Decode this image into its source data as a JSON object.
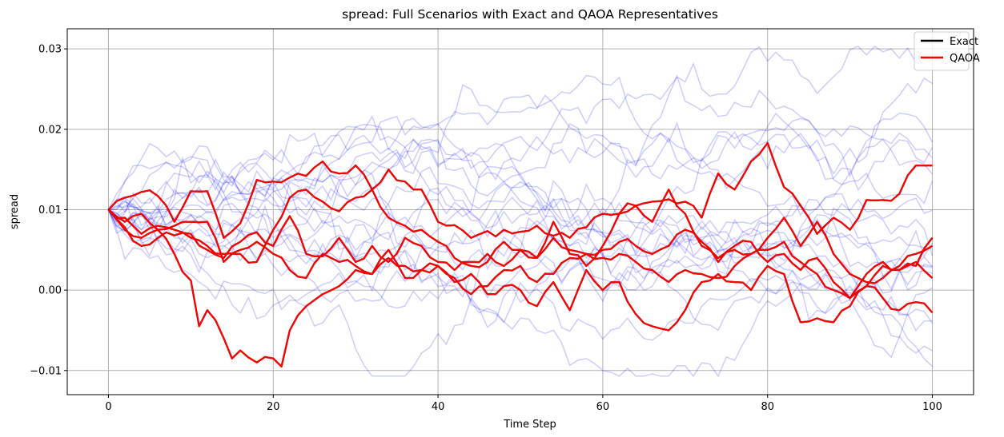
{
  "chart_data": {
    "type": "line",
    "title": "spread: Full Scenarios with Exact and QAOA Representatives",
    "xlabel": "Time Step",
    "ylabel": "spread",
    "xlim": [
      -5,
      105
    ],
    "ylim": [
      -0.013,
      0.0325
    ],
    "xticks": [
      0,
      20,
      40,
      60,
      80,
      100
    ],
    "xtick_labels": [
      "0",
      "20",
      "40",
      "60",
      "80",
      "100"
    ],
    "yticks": [
      -0.01,
      0.0,
      0.01,
      0.02,
      0.03
    ],
    "ytick_labels": [
      "−0.01",
      "0.00",
      "0.01",
      "0.02",
      "0.03"
    ],
    "grid": true,
    "legend_position": "upper right",
    "colors": {
      "scenario": "#0000ff",
      "exact": "#000000",
      "qaoa": "#ff0000"
    },
    "legend": [
      {
        "label": "Exact",
        "color": "#000000"
      },
      {
        "label": "QAOA",
        "color": "#ff0000"
      }
    ],
    "background_scenarios": {
      "count": 20,
      "n_points": 101,
      "start": 0.01,
      "note_alpha": 0.2,
      "y_min": -0.0107,
      "y_max": 0.0303
    },
    "representatives": [
      {
        "group": "QAOA",
        "waypoints": [
          [
            0,
            0.01
          ],
          [
            2,
            0.0115
          ],
          [
            4,
            0.0122
          ],
          [
            6,
            0.0117
          ],
          [
            8,
            0.0085
          ],
          [
            10,
            0.0123
          ],
          [
            12,
            0.0123
          ],
          [
            14,
            0.0065
          ],
          [
            16,
            0.0083
          ],
          [
            18,
            0.0137
          ],
          [
            20,
            0.0135
          ],
          [
            22,
            0.014
          ],
          [
            24,
            0.0142
          ],
          [
            26,
            0.016
          ],
          [
            28,
            0.0145
          ],
          [
            30,
            0.0155
          ],
          [
            32,
            0.0125
          ],
          [
            34,
            0.015
          ],
          [
            36,
            0.0135
          ],
          [
            38,
            0.0125
          ],
          [
            40,
            0.0085
          ],
          [
            44,
            0.0065
          ],
          [
            48,
            0.0075
          ],
          [
            52,
            0.008
          ],
          [
            56,
            0.0065
          ],
          [
            60,
            0.0095
          ],
          [
            64,
            0.0105
          ],
          [
            66,
            0.011
          ],
          [
            68,
            0.0113
          ],
          [
            70,
            0.011
          ],
          [
            72,
            0.009
          ],
          [
            74,
            0.0145
          ],
          [
            76,
            0.0125
          ],
          [
            78,
            0.016
          ],
          [
            80,
            0.0183
          ],
          [
            82,
            0.0128
          ],
          [
            84,
            0.0105
          ],
          [
            86,
            0.007
          ],
          [
            88,
            0.009
          ],
          [
            90,
            0.0075
          ],
          [
            92,
            0.0112
          ],
          [
            94,
            0.0112
          ],
          [
            96,
            0.012
          ],
          [
            98,
            0.0155
          ],
          [
            100,
            0.0155
          ]
        ]
      },
      {
        "group": "QAOA",
        "waypoints": [
          [
            0,
            0.01
          ],
          [
            2,
            0.0085
          ],
          [
            4,
            0.0095
          ],
          [
            6,
            0.0075
          ],
          [
            8,
            0.0045
          ],
          [
            10,
            0.0012
          ],
          [
            11,
            -0.0045
          ],
          [
            12,
            -0.0025
          ],
          [
            14,
            -0.006
          ],
          [
            15,
            -0.0085
          ],
          [
            16,
            -0.0075
          ],
          [
            18,
            -0.009
          ],
          [
            20,
            -0.0085
          ],
          [
            21,
            -0.0095
          ],
          [
            22,
            -0.005
          ],
          [
            24,
            -0.002
          ],
          [
            26,
            -0.0005
          ],
          [
            28,
            0.0005
          ],
          [
            30,
            0.0025
          ],
          [
            32,
            0.002
          ],
          [
            34,
            0.004
          ],
          [
            36,
            0.003
          ],
          [
            38,
            0.0025
          ],
          [
            40,
            0.003
          ],
          [
            42,
            0.001
          ],
          [
            44,
            0.002
          ],
          [
            46,
            -0.0005
          ],
          [
            48,
            0.0005
          ],
          [
            50,
            0.0
          ],
          [
            52,
            -0.002
          ],
          [
            54,
            0.001
          ],
          [
            56,
            -0.0025
          ],
          [
            58,
            0.0025
          ],
          [
            60,
            0.0
          ],
          [
            62,
            0.001
          ],
          [
            64,
            -0.003
          ],
          [
            66,
            -0.0045
          ],
          [
            68,
            -0.005
          ],
          [
            70,
            -0.0025
          ],
          [
            72,
            0.001
          ],
          [
            74,
            0.002
          ],
          [
            76,
            0.001
          ],
          [
            78,
            0.0
          ],
          [
            80,
            0.003
          ],
          [
            82,
            0.002
          ],
          [
            84,
            -0.004
          ],
          [
            86,
            -0.0035
          ],
          [
            88,
            -0.004
          ],
          [
            90,
            -0.002
          ],
          [
            92,
            0.0005
          ],
          [
            94,
            -0.001
          ],
          [
            96,
            -0.0025
          ],
          [
            98,
            -0.0015
          ],
          [
            100,
            -0.0028
          ]
        ]
      },
      {
        "group": "QAOA",
        "waypoints": [
          [
            0,
            0.01
          ],
          [
            2,
            0.0075
          ],
          [
            4,
            0.0065
          ],
          [
            6,
            0.0075
          ],
          [
            8,
            0.008
          ],
          [
            10,
            0.0085
          ],
          [
            12,
            0.0085
          ],
          [
            14,
            0.0035
          ],
          [
            16,
            0.0045
          ],
          [
            18,
            0.0035
          ],
          [
            20,
            0.0075
          ],
          [
            22,
            0.0115
          ],
          [
            24,
            0.0125
          ],
          [
            26,
            0.011
          ],
          [
            28,
            0.0098
          ],
          [
            30,
            0.0115
          ],
          [
            32,
            0.0125
          ],
          [
            34,
            0.009
          ],
          [
            36,
            0.008
          ],
          [
            38,
            0.0075
          ],
          [
            40,
            0.006
          ],
          [
            42,
            0.004
          ],
          [
            44,
            0.003
          ],
          [
            46,
            0.0035
          ],
          [
            48,
            0.006
          ],
          [
            50,
            0.005
          ],
          [
            52,
            0.004
          ],
          [
            54,
            0.0085
          ],
          [
            56,
            0.0045
          ],
          [
            58,
            0.003
          ],
          [
            60,
            0.0055
          ],
          [
            62,
            0.0095
          ],
          [
            64,
            0.0105
          ],
          [
            66,
            0.0085
          ],
          [
            68,
            0.0125
          ],
          [
            70,
            0.0095
          ],
          [
            72,
            0.0055
          ],
          [
            74,
            0.004
          ],
          [
            76,
            0.005
          ],
          [
            78,
            0.0045
          ],
          [
            80,
            0.0065
          ],
          [
            82,
            0.009
          ],
          [
            84,
            0.0055
          ],
          [
            86,
            0.0085
          ],
          [
            88,
            0.0045
          ],
          [
            90,
            0.002
          ],
          [
            92,
            0.001
          ],
          [
            94,
            0.0015
          ],
          [
            96,
            0.003
          ],
          [
            98,
            0.0045
          ],
          [
            100,
            0.0055
          ]
        ]
      },
      {
        "group": "QAOA",
        "waypoints": [
          [
            0,
            0.01
          ],
          [
            2,
            0.009
          ],
          [
            4,
            0.007
          ],
          [
            6,
            0.008
          ],
          [
            8,
            0.0075
          ],
          [
            10,
            0.0065
          ],
          [
            12,
            0.0055
          ],
          [
            14,
            0.0045
          ],
          [
            16,
            0.005
          ],
          [
            18,
            0.006
          ],
          [
            20,
            0.0045
          ],
          [
            22,
            0.0025
          ],
          [
            24,
            0.0015
          ],
          [
            26,
            0.0045
          ],
          [
            28,
            0.0035
          ],
          [
            30,
            0.003
          ],
          [
            32,
            0.002
          ],
          [
            34,
            0.005
          ],
          [
            36,
            0.0015
          ],
          [
            38,
            0.0025
          ],
          [
            40,
            0.003
          ],
          [
            42,
            0.0015
          ],
          [
            44,
            -0.0005
          ],
          [
            46,
            0.0005
          ],
          [
            48,
            0.0025
          ],
          [
            50,
            0.003
          ],
          [
            52,
            0.001
          ],
          [
            54,
            0.002
          ],
          [
            56,
            0.004
          ],
          [
            58,
            0.0045
          ],
          [
            60,
            0.005
          ],
          [
            62,
            0.006
          ],
          [
            64,
            0.0055
          ],
          [
            66,
            0.0045
          ],
          [
            68,
            0.0055
          ],
          [
            70,
            0.0075
          ],
          [
            72,
            0.006
          ],
          [
            74,
            0.0035
          ],
          [
            76,
            0.0055
          ],
          [
            78,
            0.006
          ],
          [
            80,
            0.0035
          ],
          [
            82,
            0.0045
          ],
          [
            84,
            0.0025
          ],
          [
            86,
            0.004
          ],
          [
            88,
            0.001
          ],
          [
            90,
            -0.001
          ],
          [
            92,
            0.002
          ],
          [
            94,
            0.0035
          ],
          [
            96,
            0.0025
          ],
          [
            98,
            0.003
          ],
          [
            100,
            0.0065
          ]
        ]
      },
      {
        "group": "QAOA",
        "waypoints": [
          [
            0,
            0.01
          ],
          [
            2,
            0.0078
          ],
          [
            4,
            0.0055
          ],
          [
            6,
            0.0065
          ],
          [
            8,
            0.0068
          ],
          [
            10,
            0.007
          ],
          [
            12,
            0.005
          ],
          [
            14,
            0.004
          ],
          [
            16,
            0.006
          ],
          [
            18,
            0.0072
          ],
          [
            20,
            0.0055
          ],
          [
            22,
            0.0092
          ],
          [
            24,
            0.0045
          ],
          [
            26,
            0.0042
          ],
          [
            28,
            0.0065
          ],
          [
            30,
            0.0035
          ],
          [
            32,
            0.0055
          ],
          [
            34,
            0.0035
          ],
          [
            36,
            0.0065
          ],
          [
            38,
            0.0055
          ],
          [
            40,
            0.0035
          ],
          [
            42,
            0.0025
          ],
          [
            44,
            0.0035
          ],
          [
            46,
            0.0045
          ],
          [
            48,
            0.003
          ],
          [
            50,
            0.005
          ],
          [
            52,
            0.004
          ],
          [
            54,
            0.0065
          ],
          [
            56,
            0.005
          ],
          [
            58,
            0.0045
          ],
          [
            60,
            0.004
          ],
          [
            62,
            0.0045
          ],
          [
            64,
            0.0035
          ],
          [
            66,
            0.0025
          ],
          [
            68,
            0.001
          ],
          [
            70,
            0.0025
          ],
          [
            72,
            0.002
          ],
          [
            74,
            0.0015
          ],
          [
            76,
            0.003
          ],
          [
            78,
            0.0045
          ],
          [
            80,
            0.005
          ],
          [
            82,
            0.006
          ],
          [
            84,
            0.0035
          ],
          [
            86,
            0.002
          ],
          [
            88,
            0.0
          ],
          [
            90,
            -0.001
          ],
          [
            92,
            0.0005
          ],
          [
            94,
            0.003
          ],
          [
            96,
            0.0025
          ],
          [
            98,
            0.0035
          ],
          [
            100,
            0.0015
          ]
        ]
      }
    ]
  }
}
